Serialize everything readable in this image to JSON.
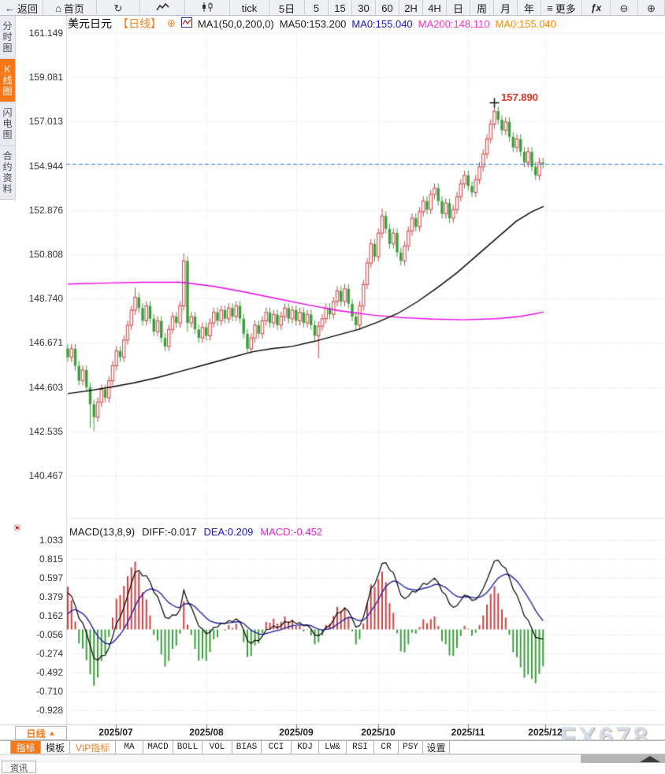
{
  "toolbar": {
    "items": [
      {
        "name": "back-button",
        "icon": "←",
        "icon_name": "back-arrow-icon",
        "label": "返回"
      },
      {
        "name": "home-button",
        "icon": "⌂",
        "icon_name": "home-icon",
        "label": "首页"
      },
      {
        "name": "refresh-button",
        "icon": "↻",
        "icon_name": "refresh-icon",
        "label": ""
      },
      {
        "name": "line-chart-button",
        "icon_svg": "line",
        "icon_name": "line-chart-icon",
        "label": ""
      },
      {
        "name": "candle-chart-button",
        "icon_svg": "candle",
        "icon_name": "candlestick-icon",
        "label": ""
      },
      {
        "name": "interval-tick-button",
        "label": "tick"
      },
      {
        "name": "interval-5d-button",
        "label": "5日"
      },
      {
        "name": "interval-5-button",
        "label": "5"
      },
      {
        "name": "interval-15-button",
        "label": "15"
      },
      {
        "name": "interval-30-button",
        "label": "30"
      },
      {
        "name": "interval-60-button",
        "label": "60"
      },
      {
        "name": "interval-2h-button",
        "label": "2H"
      },
      {
        "name": "interval-4h-button",
        "label": "4H"
      },
      {
        "name": "interval-day-button",
        "label": "日"
      },
      {
        "name": "interval-week-button",
        "label": "周"
      },
      {
        "name": "interval-month-button",
        "label": "月"
      },
      {
        "name": "interval-year-button",
        "label": "年"
      },
      {
        "name": "more-button",
        "icon": "≡",
        "icon_name": "menu-icon",
        "label": "更多"
      },
      {
        "name": "fx-button",
        "label": "ƒx",
        "is_fx": true
      },
      {
        "name": "zoom-out-button",
        "icon": "⊖",
        "icon_name": "zoom-out-icon",
        "label": ""
      },
      {
        "name": "zoom-in-button",
        "icon": "⊕",
        "icon_name": "zoom-in-icon",
        "label": ""
      }
    ]
  },
  "sidebar": {
    "items": [
      {
        "name": "sidebar-item-time-chart",
        "label": "分时图",
        "active": false
      },
      {
        "name": "sidebar-item-kline-chart",
        "label": "K线图",
        "active": true
      },
      {
        "name": "sidebar-item-lightning-chart",
        "label": "闪电图",
        "active": false
      },
      {
        "name": "sidebar-item-contract-info",
        "label": "合约资料",
        "active": false
      }
    ]
  },
  "chart_header": {
    "symbol": "美元日元",
    "period_tag": "【日线】",
    "add_icon": "⊕",
    "ma_settings": "MA1(50,0,200,0)",
    "ma50": "MA50:153.200",
    "ma0_blue": "MA0:155.040",
    "ma200": "MA200:148.110",
    "ma0_orange": "MA0:155.040"
  },
  "macd_header": {
    "title": "MACD(13,8,9)",
    "diff": "DIFF:-0.017",
    "dea": "DEA:0.209",
    "macd": "MACD:-0.452"
  },
  "price_annotation": "157.890",
  "period_selector": {
    "label": "日线",
    "arrow": "▲"
  },
  "indicator_tabs": {
    "items": [
      {
        "label": "指标",
        "state": "active"
      },
      {
        "label": "模板",
        "state": "normal"
      },
      {
        "label": "VIP指标",
        "state": "vip"
      },
      {
        "label": "MA",
        "state": "mono"
      },
      {
        "label": "MACD",
        "state": "mono"
      },
      {
        "label": "BOLL",
        "state": "mono"
      },
      {
        "label": "VOL",
        "state": "mono"
      },
      {
        "label": "BIAS",
        "state": "mono"
      },
      {
        "label": "CCI",
        "state": "mono"
      },
      {
        "label": "KDJ",
        "state": "mono"
      },
      {
        "label": "LW&",
        "state": "mono"
      },
      {
        "label": "RSI",
        "state": "mono"
      },
      {
        "label": "CR",
        "state": "mono"
      },
      {
        "label": "PSY",
        "state": "mono"
      },
      {
        "label": "设置",
        "state": "normal"
      }
    ]
  },
  "news_tab_label": "资讯",
  "watermark": "FX678",
  "colors": {
    "accent_orange": "#f87818",
    "up_candle": "#cf4040",
    "down_candle": "#3a9e3a",
    "ma50_line": "#000000",
    "ma200_line": "#ee00ee",
    "price_line": "#1a73e8",
    "dea_line": "#2222aa",
    "annotation_red": "#e33022"
  },
  "chart_data": {
    "type": "candlestick",
    "symbol": "美元日元",
    "period": "日线",
    "main": {
      "y_ticks": [
        161.149,
        159.081,
        157.013,
        154.944,
        152.876,
        150.808,
        148.74,
        146.671,
        144.603,
        142.535,
        140.467
      ],
      "current_price": 155.04,
      "high_annotation": {
        "index": 114,
        "value": 157.89
      },
      "first_open": 146.4,
      "wick_default": 0.22,
      "closes": [
        146.0,
        146.4,
        145.6,
        144.9,
        145.4,
        144.6,
        143.8,
        143.2,
        143.9,
        144.5,
        144.1,
        144.9,
        145.6,
        146.3,
        146.0,
        146.8,
        147.5,
        148.2,
        148.8,
        148.3,
        147.7,
        148.4,
        147.8,
        147.2,
        147.7,
        146.9,
        146.5,
        147.3,
        147.9,
        147.6,
        148.4,
        150.5,
        147.6,
        147.9,
        147.3,
        146.9,
        147.4,
        147.0,
        147.6,
        148.1,
        147.7,
        148.2,
        147.8,
        148.3,
        147.9,
        148.4,
        147.8,
        147.1,
        146.4,
        146.9,
        147.5,
        147.1,
        147.7,
        148.1,
        147.6,
        148.0,
        147.5,
        147.9,
        148.3,
        147.8,
        148.2,
        147.7,
        148.1,
        147.6,
        148.0,
        147.5,
        147.0,
        147.45,
        147.8,
        148.3,
        148.0,
        148.6,
        149.1,
        148.6,
        149.2,
        148.5,
        147.9,
        147.5,
        148.4,
        149.4,
        150.4,
        151.3,
        150.7,
        151.8,
        152.6,
        152.0,
        151.3,
        151.8,
        150.9,
        150.5,
        151.2,
        151.9,
        152.5,
        152.1,
        152.8,
        153.3,
        152.9,
        153.6,
        153.9,
        153.3,
        152.7,
        153.2,
        152.5,
        152.9,
        153.5,
        154.1,
        154.5,
        154.0,
        153.7,
        154.3,
        154.9,
        155.5,
        156.2,
        156.9,
        157.5,
        157.1,
        156.6,
        157.0,
        156.3,
        155.8,
        156.2,
        155.6,
        155.1,
        155.6,
        154.9,
        154.5,
        155.1,
        155.04
      ],
      "overrides": {
        "6": {
          "low": 142.7
        },
        "7": {
          "low": 142.55
        },
        "18": {
          "high": 149.25
        },
        "31": {
          "open": 148.4,
          "high": 150.85
        },
        "32": {
          "low": 147.2
        },
        "67": {
          "low": 145.95
        },
        "84": {
          "high": 152.95
        },
        "114": {
          "high": 157.89
        }
      },
      "ma50": {
        "label": "MA50",
        "last_value": 153.2,
        "points": [
          [
            86,
            144.3
          ],
          [
            110,
            144.42
          ],
          [
            140,
            144.6
          ],
          [
            170,
            144.8
          ],
          [
            200,
            145.05
          ],
          [
            230,
            145.35
          ],
          [
            260,
            145.65
          ],
          [
            290,
            145.95
          ],
          [
            320,
            146.25
          ],
          [
            345,
            146.4
          ],
          [
            370,
            146.5
          ],
          [
            400,
            146.75
          ],
          [
            430,
            147.05
          ],
          [
            455,
            147.3
          ],
          [
            480,
            147.65
          ],
          [
            505,
            148.05
          ],
          [
            530,
            148.6
          ],
          [
            555,
            149.25
          ],
          [
            580,
            149.95
          ],
          [
            605,
            150.75
          ],
          [
            630,
            151.55
          ],
          [
            655,
            152.35
          ],
          [
            675,
            152.8
          ],
          [
            690,
            153.05
          ]
        ]
      },
      "ma200": {
        "label": "MA200",
        "last_value": 148.11,
        "points": [
          [
            86,
            149.42
          ],
          [
            130,
            149.46
          ],
          [
            180,
            149.5
          ],
          [
            230,
            149.5
          ],
          [
            270,
            149.32
          ],
          [
            310,
            149.05
          ],
          [
            350,
            148.75
          ],
          [
            390,
            148.45
          ],
          [
            430,
            148.18
          ],
          [
            470,
            147.98
          ],
          [
            510,
            147.85
          ],
          [
            550,
            147.78
          ],
          [
            590,
            147.75
          ],
          [
            630,
            147.8
          ],
          [
            660,
            147.9
          ],
          [
            690,
            148.11
          ]
        ]
      }
    },
    "macd": {
      "params": [
        13,
        8,
        9
      ],
      "diff_value": -0.017,
      "dea_value": 0.209,
      "macd_value": -0.452,
      "y_ticks": [
        1.033,
        0.815,
        0.597,
        0.379,
        0.162,
        -0.056,
        -0.274,
        -0.492,
        -0.71,
        -0.928
      ]
    },
    "x_axis": {
      "labels": [
        {
          "label": "2025/07",
          "x": 147
        },
        {
          "label": "2025/08",
          "x": 262
        },
        {
          "label": "2025/09",
          "x": 376
        },
        {
          "label": "2025/10",
          "x": 480
        },
        {
          "label": "2025/11",
          "x": 594
        },
        {
          "label": "2025/12",
          "x": 692
        }
      ]
    }
  }
}
